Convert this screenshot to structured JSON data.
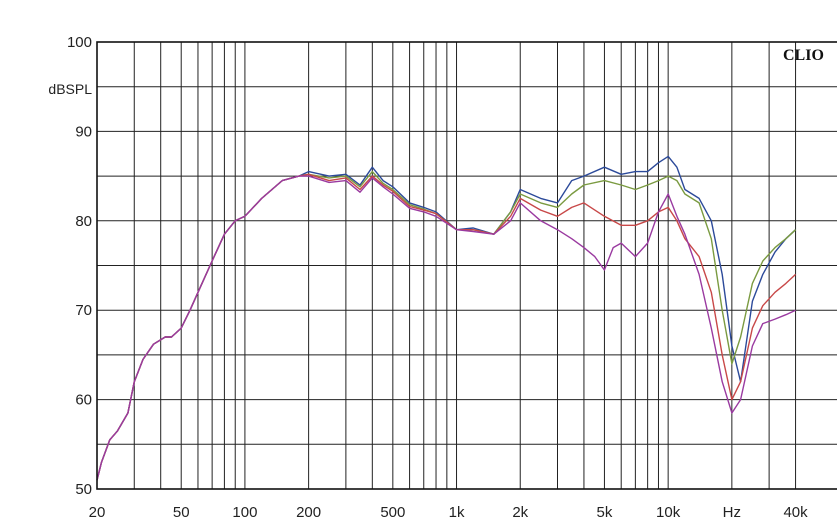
{
  "chart_data": {
    "type": "line",
    "brand": "CLIO",
    "ylabel": "dBSPL",
    "xlabel": "Hz",
    "x_scale": "log",
    "ylim": [
      50,
      100
    ],
    "xlim": [
      20,
      40000
    ],
    "grid": true,
    "y_ticks": [
      {
        "value": 100,
        "label": "100"
      },
      {
        "value": 90,
        "label": "90"
      },
      {
        "value": 80,
        "label": "80"
      },
      {
        "value": 70,
        "label": "70"
      },
      {
        "value": 60,
        "label": "60"
      },
      {
        "value": 50,
        "label": "50"
      }
    ],
    "x_ticks": [
      {
        "value": 20,
        "label": "20"
      },
      {
        "value": 50,
        "label": "50"
      },
      {
        "value": 100,
        "label": "100"
      },
      {
        "value": 200,
        "label": "200"
      },
      {
        "value": 500,
        "label": "500"
      },
      {
        "value": 1000,
        "label": "1k"
      },
      {
        "value": 2000,
        "label": "2k"
      },
      {
        "value": 5000,
        "label": "5k"
      },
      {
        "value": 10000,
        "label": "10k"
      },
      {
        "value": 40000,
        "label": "40k"
      }
    ],
    "series": [
      {
        "color": "#2c4a9a",
        "x": [
          20,
          21,
          23,
          25,
          28,
          30,
          33,
          37,
          42,
          45,
          50,
          55,
          60,
          70,
          80,
          90,
          100,
          120,
          150,
          180,
          200,
          250,
          300,
          350,
          400,
          450,
          500,
          600,
          700,
          800,
          1000,
          1200,
          1500,
          1800,
          2000,
          2500,
          3000,
          3500,
          4000,
          5000,
          6000,
          7000,
          8000,
          9000,
          10000,
          11000,
          12000,
          14000,
          16000,
          18000,
          20000,
          22000,
          25000,
          28000,
          32000,
          36000,
          40000
        ],
        "y": [
          51,
          53,
          55.5,
          56.5,
          58.5,
          62,
          64.5,
          66.2,
          67,
          67,
          68,
          70,
          72,
          75.5,
          78.5,
          80,
          80.5,
          82.5,
          84.5,
          85,
          85.5,
          85,
          85.2,
          84,
          86,
          84.5,
          83.8,
          82,
          81.5,
          81,
          79,
          79.2,
          78.5,
          81,
          83.5,
          82.5,
          82,
          84.5,
          85,
          86,
          85.2,
          85.5,
          85.5,
          86.5,
          87.2,
          86,
          83.5,
          82.5,
          80,
          74,
          66,
          62,
          71,
          74,
          76.5,
          78,
          79
        ]
      },
      {
        "color": "#7a9a40",
        "x": [
          20,
          21,
          23,
          25,
          28,
          30,
          33,
          37,
          42,
          45,
          50,
          55,
          60,
          70,
          80,
          90,
          100,
          120,
          150,
          180,
          200,
          250,
          300,
          350,
          400,
          450,
          500,
          600,
          700,
          800,
          1000,
          1200,
          1500,
          1800,
          2000,
          2500,
          3000,
          3500,
          4000,
          5000,
          6000,
          7000,
          8000,
          9000,
          10000,
          11000,
          12000,
          14000,
          16000,
          18000,
          20000,
          22000,
          25000,
          28000,
          32000,
          36000,
          40000
        ],
        "y": [
          51,
          53,
          55.5,
          56.5,
          58.5,
          62,
          64.5,
          66.2,
          67,
          67,
          68,
          70,
          72,
          75.5,
          78.5,
          80,
          80.5,
          82.5,
          84.5,
          85,
          85.2,
          84.8,
          85,
          83.8,
          85.5,
          84.2,
          83.5,
          81.8,
          81.3,
          80.8,
          79,
          79,
          78.5,
          81,
          83,
          82,
          81.5,
          83,
          84,
          84.5,
          84,
          83.5,
          84,
          84.5,
          85,
          84.5,
          83,
          82,
          78,
          70,
          64,
          67,
          73,
          75.5,
          77,
          78,
          79
        ]
      },
      {
        "color": "#c84848",
        "x": [
          20,
          21,
          23,
          25,
          28,
          30,
          33,
          37,
          42,
          45,
          50,
          55,
          60,
          70,
          80,
          90,
          100,
          120,
          150,
          180,
          200,
          250,
          300,
          350,
          400,
          450,
          500,
          600,
          700,
          800,
          1000,
          1200,
          1500,
          1800,
          2000,
          2500,
          3000,
          3500,
          4000,
          5000,
          6000,
          7000,
          8000,
          9000,
          10000,
          11000,
          12000,
          14000,
          16000,
          18000,
          20000,
          22000,
          25000,
          28000,
          32000,
          36000,
          40000
        ],
        "y": [
          51,
          53,
          55.5,
          56.5,
          58.5,
          62,
          64.5,
          66.2,
          67,
          67,
          68,
          70,
          72,
          75.5,
          78.5,
          80,
          80.5,
          82.5,
          84.5,
          85,
          85.2,
          84.5,
          84.8,
          83.5,
          85,
          84,
          83.3,
          81.6,
          81.2,
          80.8,
          79,
          79,
          78.5,
          80.5,
          82.5,
          81.2,
          80.5,
          81.5,
          82,
          80.5,
          79.5,
          79.5,
          80,
          81,
          81.5,
          80,
          78,
          76,
          72,
          65,
          60,
          62,
          68,
          70.5,
          72,
          73,
          74
        ]
      },
      {
        "color": "#9a3aa0",
        "x": [
          20,
          21,
          23,
          25,
          28,
          30,
          33,
          37,
          42,
          45,
          50,
          55,
          60,
          70,
          80,
          90,
          100,
          120,
          150,
          180,
          200,
          250,
          300,
          350,
          400,
          450,
          500,
          600,
          700,
          800,
          1000,
          1200,
          1500,
          1800,
          2000,
          2500,
          3000,
          3500,
          4000,
          4500,
          5000,
          5500,
          6000,
          7000,
          8000,
          9000,
          10000,
          11000,
          12000,
          14000,
          16000,
          18000,
          20000,
          22000,
          25000,
          28000,
          32000,
          36000,
          40000
        ],
        "y": [
          51,
          53,
          55.5,
          56.5,
          58.5,
          62,
          64.5,
          66.2,
          67,
          67,
          68,
          70,
          72,
          75.5,
          78.5,
          80,
          80.5,
          82.5,
          84.5,
          85,
          85,
          84.3,
          84.5,
          83.2,
          84.8,
          83.8,
          83,
          81.4,
          81,
          80.5,
          79,
          78.8,
          78.5,
          80,
          82,
          80,
          79,
          78,
          77,
          76,
          74.5,
          77,
          77.5,
          76,
          77.5,
          81,
          83,
          80.5,
          78.5,
          74,
          68,
          62,
          58.5,
          60,
          66,
          68.5,
          69,
          69.5,
          70
        ]
      }
    ]
  }
}
